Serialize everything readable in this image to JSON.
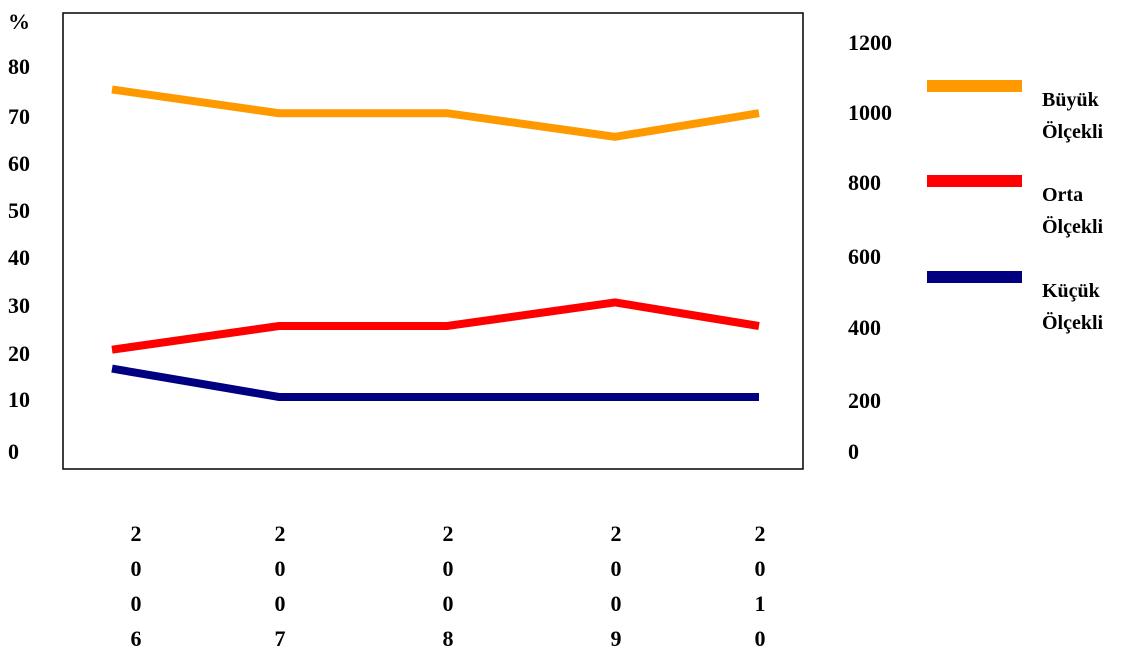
{
  "chart_data": {
    "type": "line",
    "title": "",
    "ylabel_left": "%",
    "x": [
      "2006",
      "2007",
      "2008",
      "2009",
      "2010"
    ],
    "x_tick_labels": [
      [
        "2",
        "0",
        "0",
        "6"
      ],
      [
        "2",
        "0",
        "0",
        "7"
      ],
      [
        "2",
        "0",
        "0",
        "8"
      ],
      [
        "2",
        "0",
        "0",
        "9"
      ],
      [
        "2",
        "0",
        "1",
        "0"
      ]
    ],
    "y_left_ticks": [
      "80",
      "70",
      "60",
      "50",
      "40",
      "30",
      "20",
      "10",
      "0"
    ],
    "y_right_ticks": [
      "1200",
      "1000",
      "800",
      "600",
      "400",
      "200",
      "0"
    ],
    "grid": false,
    "legend_position": "right",
    "series": [
      {
        "name": "Büyük Ölçekli",
        "legend_lines": [
          "Büyük",
          "Ölçekli"
        ],
        "color": "#FF9900",
        "values": [
          76,
          71,
          71,
          66,
          71
        ]
      },
      {
        "name": "Orta Ölçekli",
        "legend_lines": [
          "Orta",
          "Ölçekli"
        ],
        "color": "#FF0000",
        "values": [
          21,
          26,
          26,
          31,
          26
        ]
      },
      {
        "name": "Küçük Ölçekli",
        "legend_lines": [
          "Küçük",
          "Ölçekli"
        ],
        "color": "#000080",
        "values": [
          17,
          11,
          11,
          11,
          11
        ]
      }
    ]
  }
}
